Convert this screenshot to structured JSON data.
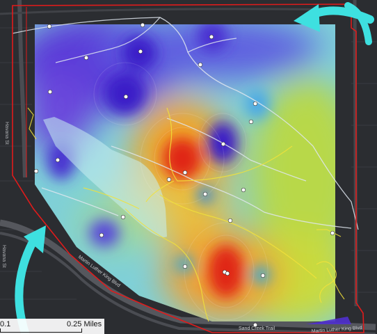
{
  "map": {
    "road_labels": [
      "Havana St",
      "Havana St",
      "Martin Luther King Blvd",
      "Martin Luther King Blvd",
      "Sand Creek Trail"
    ],
    "colors": {
      "background": "#2b2d31",
      "boundary": "#e01b1b",
      "trail": "#dfe6ee",
      "path": "#f2e23a",
      "arrow": "#3ee0e0",
      "sample_point": "#ffffff"
    },
    "legend": {
      "scale_left": "0.1",
      "scale_right": "0.25 Miles"
    }
  }
}
